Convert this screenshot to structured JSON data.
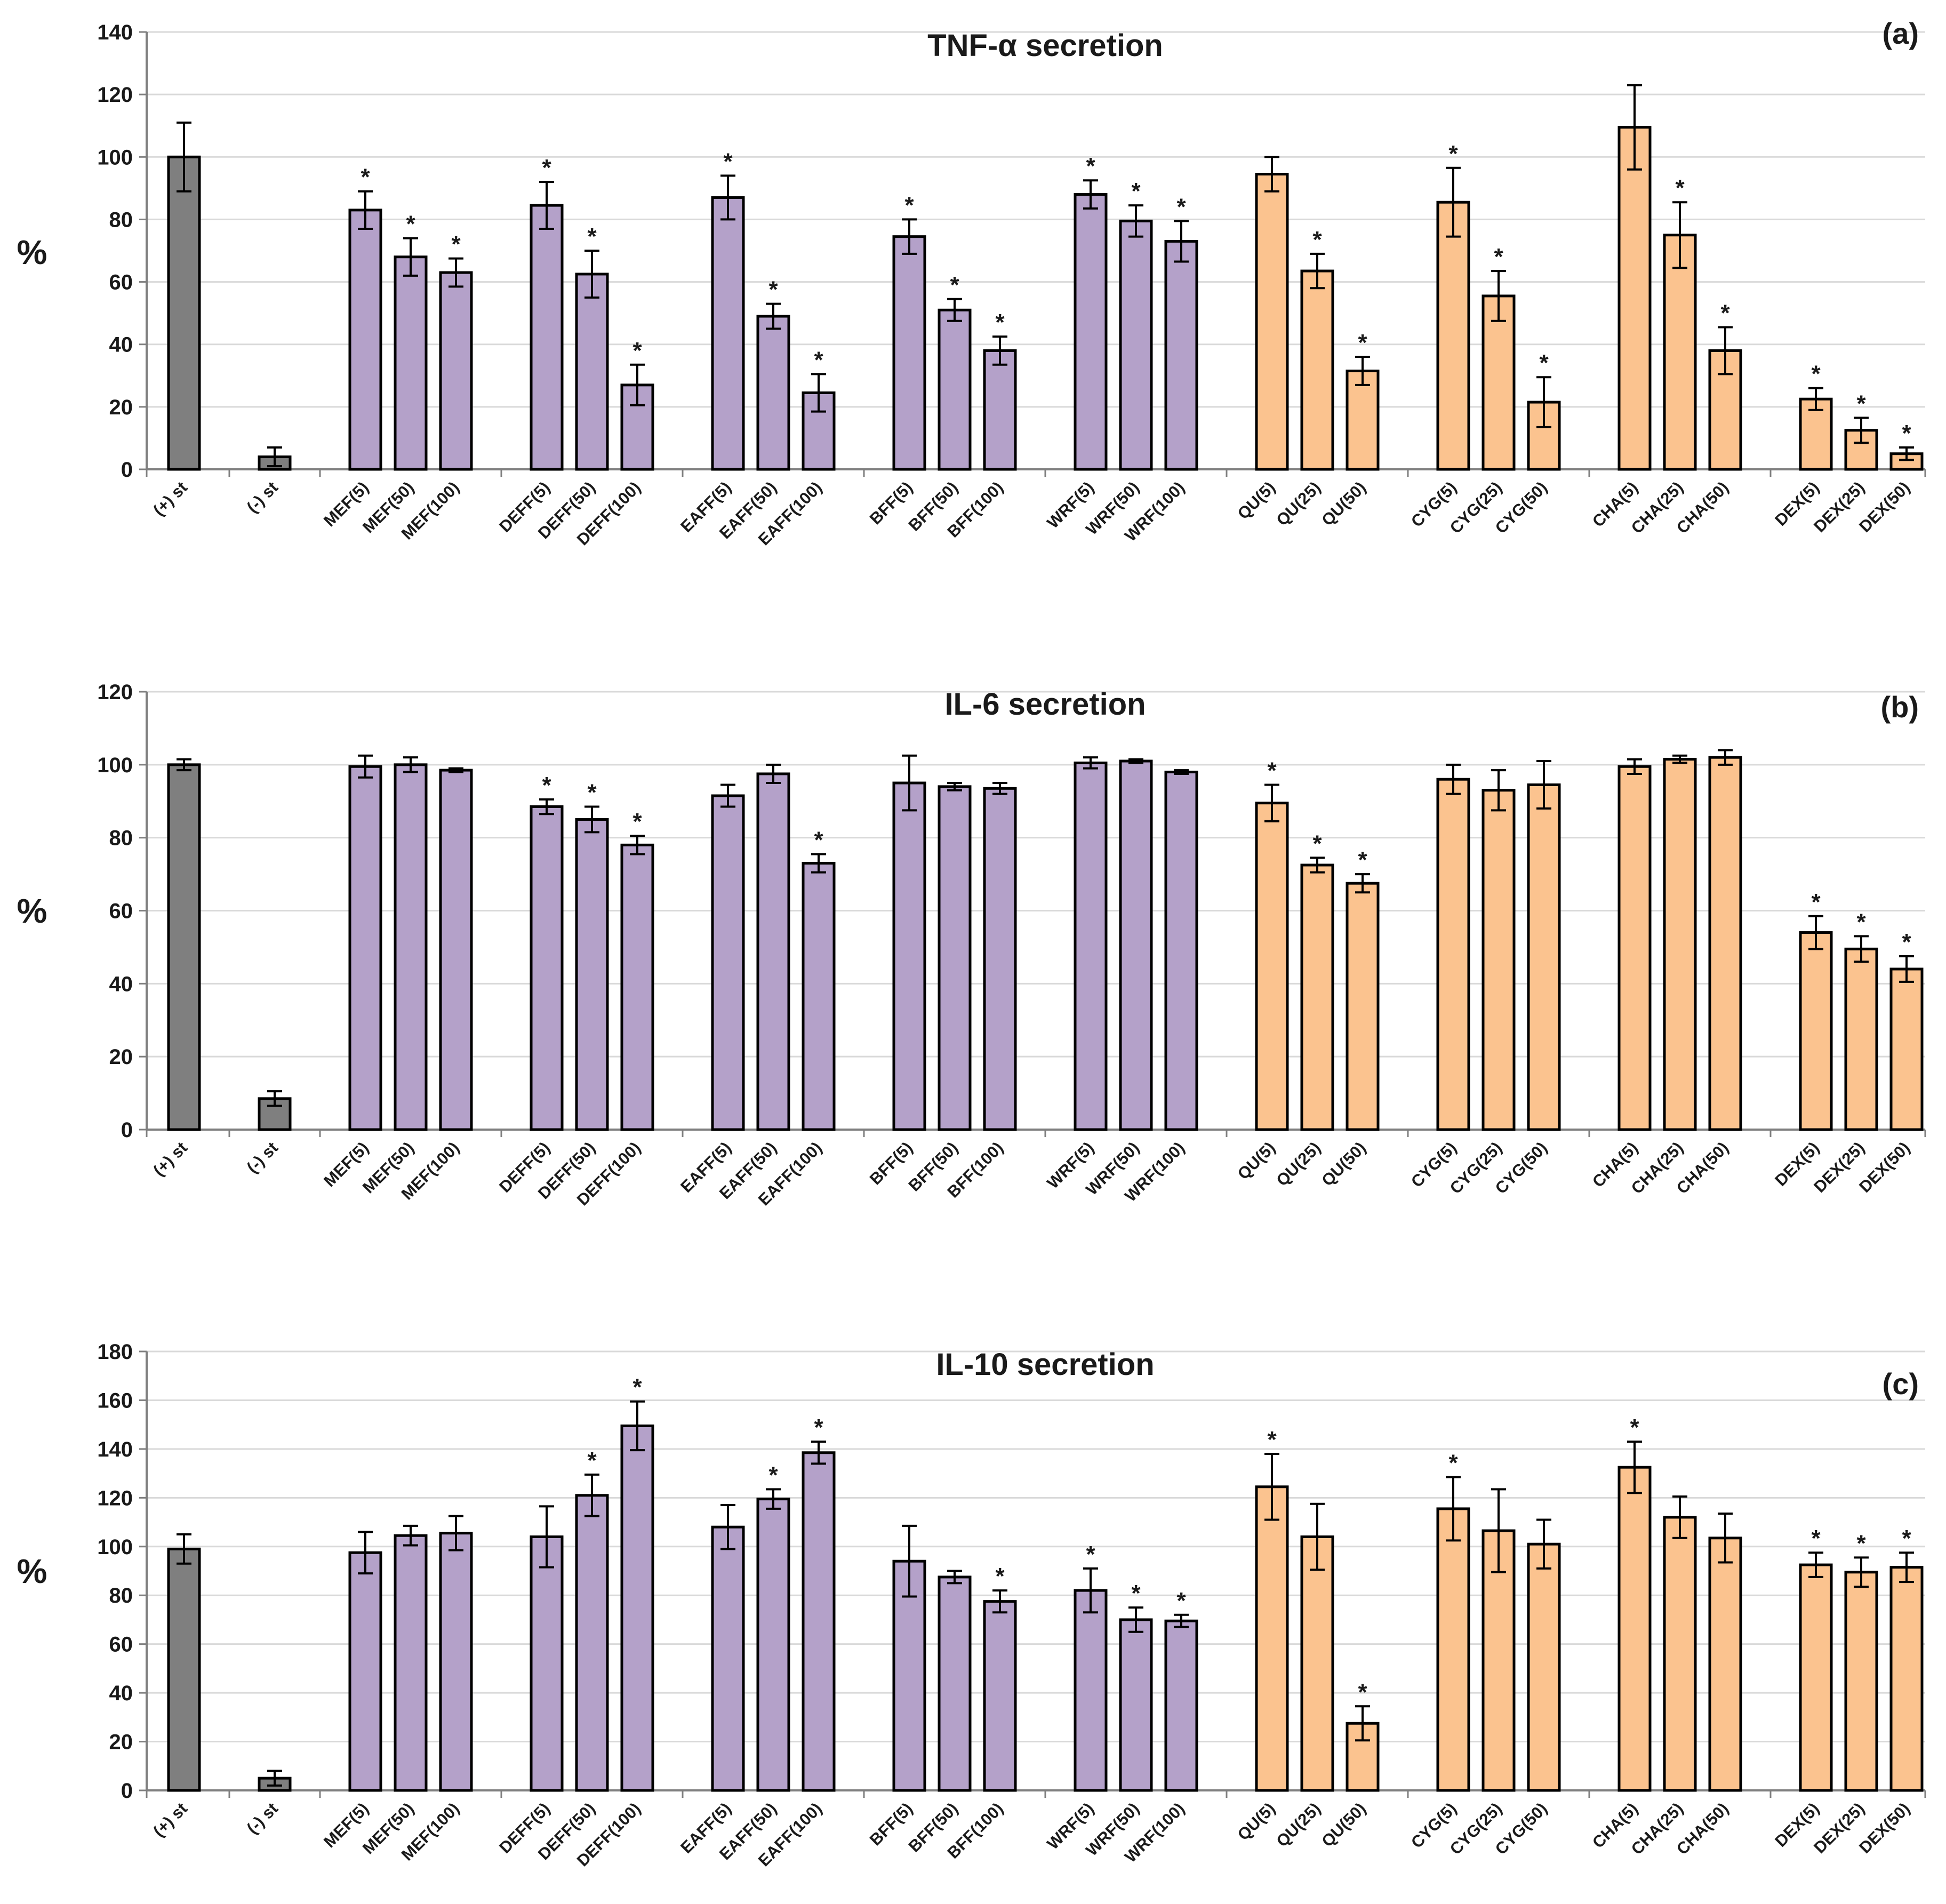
{
  "colors": {
    "positive_control": "#7f7f7f",
    "fraction": "#b4a1c9",
    "compound": "#fbc38f"
  },
  "categories": [
    "(+) st",
    "(-) st",
    "MEF(5)",
    "MEF(50)",
    "MEF(100)",
    "DEFF(5)",
    "DEFF(50)",
    "DEFF(100)",
    "EAFF(5)",
    "EAFF(50)",
    "EAFF(100)",
    "BFF(5)",
    "BFF(50)",
    "BFF(100)",
    "WRF(5)",
    "WRF(50)",
    "WRF(100)",
    "QU(5)",
    "QU(25)",
    "QU(50)",
    "CYG(5)",
    "CYG(25)",
    "CYG(50)",
    "CHA(5)",
    "CHA(25)",
    "CHA(50)",
    "DEX(5)",
    "DEX(25)",
    "DEX(50)"
  ],
  "chart_data": [
    {
      "type": "bar",
      "panel": "(a)",
      "title": "TNF-α secretion",
      "ylabel": "%",
      "xlabel": "",
      "ylim": [
        0,
        140
      ],
      "yticks": [
        0,
        20,
        40,
        60,
        80,
        100,
        120,
        140
      ],
      "values": [
        100,
        4,
        83,
        68,
        63,
        84.5,
        62.5,
        27,
        87,
        49,
        24.5,
        74.5,
        51,
        38,
        88,
        79.5,
        73,
        94.5,
        63.5,
        31.5,
        85.5,
        55.5,
        21.5,
        109.5,
        75,
        38,
        22.5,
        12.5,
        5
      ],
      "errors": [
        11,
        3,
        6,
        6,
        4.5,
        7.5,
        7.5,
        6.5,
        7,
        4,
        6,
        5.5,
        3.5,
        4.5,
        4.5,
        5,
        6.5,
        5.5,
        5.5,
        4.5,
        11,
        8,
        8,
        13.5,
        10.5,
        7.5,
        3.5,
        4,
        2
      ],
      "significant": [
        false,
        false,
        true,
        true,
        true,
        true,
        true,
        true,
        true,
        true,
        true,
        true,
        true,
        true,
        true,
        true,
        true,
        false,
        true,
        true,
        true,
        true,
        true,
        false,
        true,
        true,
        true,
        true,
        true
      ]
    },
    {
      "type": "bar",
      "panel": "(b)",
      "title": "IL-6 secretion",
      "ylabel": "%",
      "xlabel": "",
      "ylim": [
        0,
        120
      ],
      "yticks": [
        0,
        20,
        40,
        60,
        80,
        100,
        120
      ],
      "values": [
        100,
        8.5,
        99.5,
        100,
        98.5,
        88.5,
        85,
        78,
        91.5,
        97.5,
        73,
        95,
        94,
        93.5,
        100.5,
        101,
        98,
        89.5,
        72.5,
        67.5,
        96,
        93,
        94.5,
        99.5,
        101.5,
        102,
        54,
        49.5,
        44
      ],
      "errors": [
        1.5,
        2,
        3,
        2,
        0.5,
        2,
        3.5,
        2.5,
        3,
        2.5,
        2.5,
        7.5,
        1,
        1.5,
        1.5,
        0.5,
        0.5,
        5,
        2,
        2.5,
        4,
        5.5,
        6.5,
        2,
        1,
        2,
        4.5,
        3.5,
        3.5
      ],
      "significant": [
        false,
        false,
        false,
        false,
        false,
        true,
        true,
        true,
        false,
        false,
        true,
        false,
        false,
        false,
        false,
        false,
        false,
        true,
        true,
        true,
        false,
        false,
        false,
        false,
        false,
        false,
        true,
        true,
        true
      ]
    },
    {
      "type": "bar",
      "panel": "(c)",
      "title": "IL-10 secretion",
      "ylabel": "%",
      "xlabel": "",
      "ylim": [
        0,
        180
      ],
      "yticks": [
        0,
        20,
        40,
        60,
        80,
        100,
        120,
        140,
        160,
        180
      ],
      "values": [
        99,
        5,
        97.5,
        104.5,
        105.5,
        104,
        121,
        149.5,
        108,
        119.5,
        138.5,
        94,
        87.5,
        77.5,
        82,
        70,
        69.5,
        124.5,
        104,
        27.5,
        115.5,
        106.5,
        101,
        132.5,
        112,
        103.5,
        92.5,
        89.5,
        91.5
      ],
      "errors": [
        6,
        3,
        8.5,
        4,
        7,
        12.5,
        8.5,
        10,
        9,
        4,
        4.5,
        14.5,
        2.5,
        4.5,
        9,
        5,
        2.5,
        13.5,
        13.5,
        7,
        13,
        17,
        10,
        10.5,
        8.5,
        10,
        5,
        6,
        6
      ],
      "significant": [
        false,
        false,
        false,
        false,
        false,
        false,
        true,
        true,
        false,
        true,
        true,
        false,
        false,
        true,
        true,
        true,
        true,
        true,
        false,
        true,
        true,
        false,
        false,
        true,
        false,
        false,
        true,
        true,
        true
      ]
    }
  ]
}
